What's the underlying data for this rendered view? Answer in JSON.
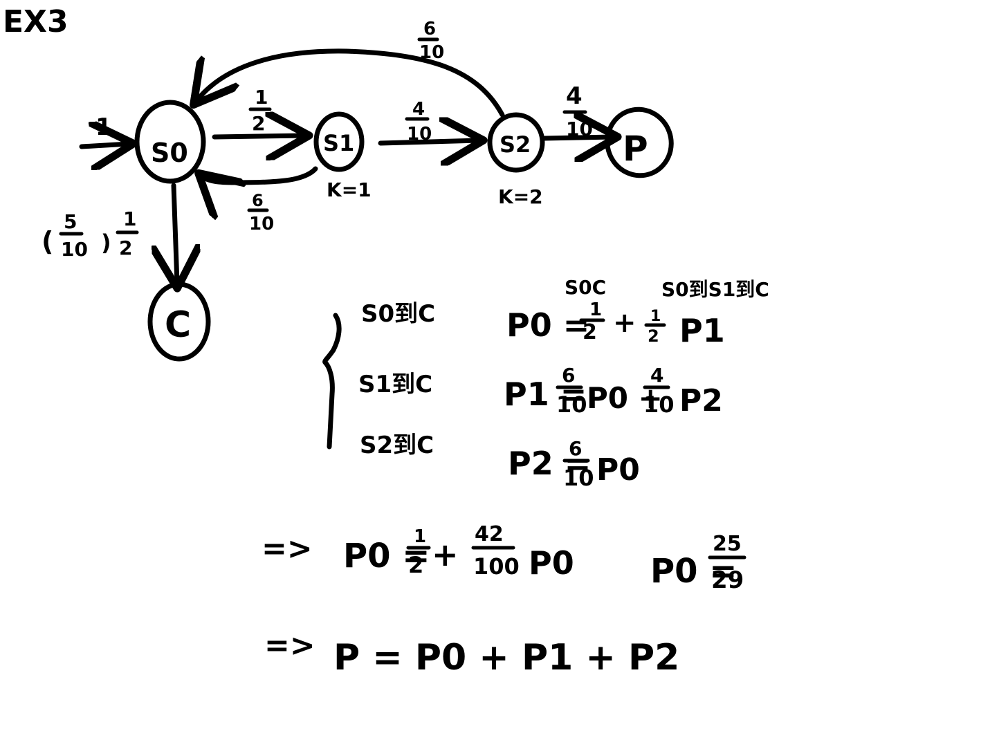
{
  "title": "EX3",
  "nodes": {
    "s0": "S0",
    "s1": "S1",
    "s2": "S2",
    "p": "P",
    "c": "C"
  },
  "node_notes": {
    "s1": "K=1",
    "s2": "K=2"
  },
  "edges": {
    "start": "1",
    "s0_s1": {
      "num": "1",
      "den": "2"
    },
    "s1_s2": {
      "num": "4",
      "den": "10"
    },
    "s2_p": {
      "num": "4",
      "den": "10"
    },
    "s2_s0": {
      "num": "6",
      "den": "10"
    },
    "s1_s0": {
      "num": "6",
      "den": "10"
    },
    "s0_c": {
      "prefix": "(",
      "num1": "5",
      "den1": "10",
      "mid": ")",
      "num2": "1",
      "den2": "2"
    }
  },
  "system": {
    "rows": [
      {
        "label": "S0到C"
      },
      {
        "label": "S1到C"
      },
      {
        "label": "S2到C"
      }
    ],
    "annotations": {
      "first": "S0C",
      "second": "S0到S1到C"
    },
    "eq1": {
      "lhs": "P0 =",
      "f1n": "1",
      "f1d": "2",
      "plus": "+",
      "f2n": "1",
      "f2d": "2",
      "tail": "P1"
    },
    "eq2": {
      "lhs": "P1 =",
      "f1n": "6",
      "f1d": "10",
      "mid": "P0 +",
      "f2n": "4",
      "f2d": "10",
      "tail": "P2"
    },
    "eq3": {
      "lhs": "P2 =",
      "f1n": "6",
      "f1d": "10",
      "tail": "P0"
    }
  },
  "derivation": {
    "line1": {
      "arrow": "=>",
      "lhs": "P0 =",
      "f1n": "1",
      "f1d": "2",
      "plus": "+",
      "f2n": "42",
      "f2d": "100",
      "tail": "P0"
    },
    "result": {
      "lhs": "P0 =",
      "num": "25",
      "den": "29"
    },
    "line2": {
      "arrow": "=>",
      "expr": "P = P0 + P1 + P2"
    }
  }
}
